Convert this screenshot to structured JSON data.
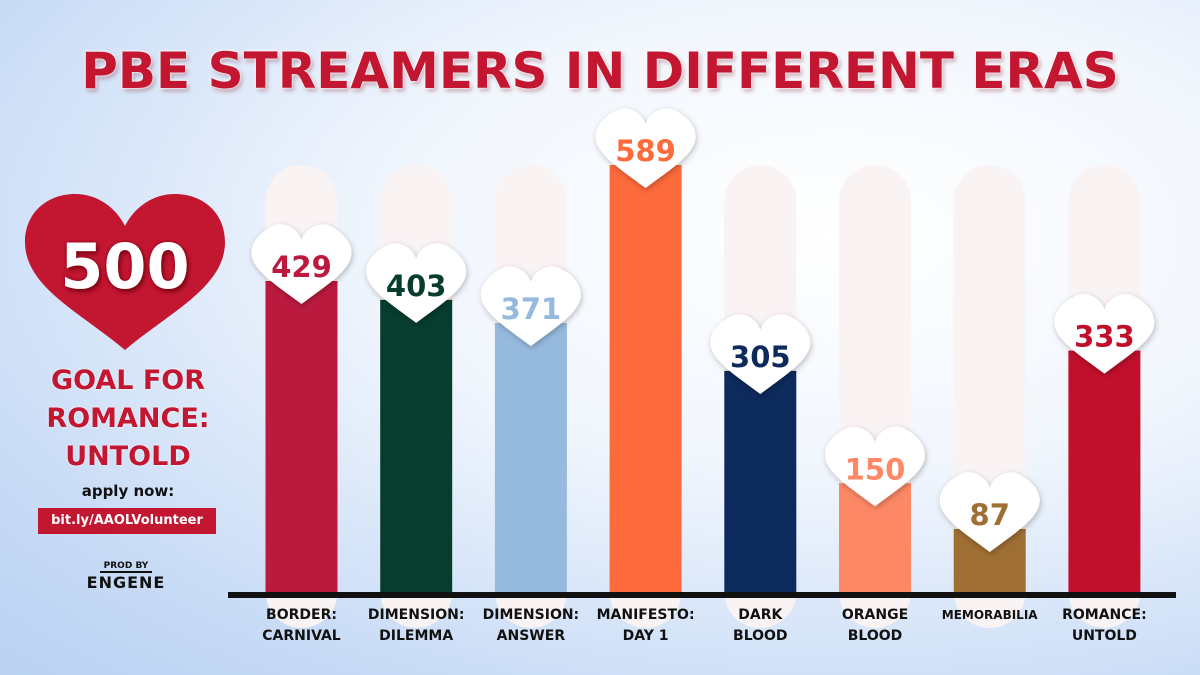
{
  "title": "PBE STREAMERS IN DIFFERENT ERAS",
  "goal": {
    "value": "500",
    "label_lines": [
      "GOAL FOR",
      "ROMANCE:",
      "UNTOLD"
    ],
    "apply_text": "apply now:",
    "link": "bit.ly/AAOLVolunteer"
  },
  "credit": {
    "line1": "PROD BY",
    "line2": "ENGENE"
  },
  "colors": {
    "accent": "#c21631",
    "track": "#f9f3f4"
  },
  "chart_data": {
    "type": "bar",
    "categories": [
      [
        "BORDER:",
        "CARNIVAL"
      ],
      [
        "DIMENSION:",
        "DILEMMA"
      ],
      [
        "DIMENSION:",
        "ANSWER"
      ],
      [
        "MANIFESTO:",
        "DAY 1"
      ],
      [
        "DARK",
        "BLOOD"
      ],
      [
        "ORANGE",
        "BLOOD"
      ],
      [
        "MEMORABILIA"
      ],
      [
        "ROMANCE:",
        "UNTOLD"
      ]
    ],
    "values": [
      429,
      403,
      371,
      589,
      305,
      150,
      87,
      333
    ],
    "data_labels": [
      "429",
      "403",
      "371",
      "589",
      "305",
      "150",
      "87",
      "333"
    ],
    "bar_colors": [
      "#bb1a3e",
      "#063d2e",
      "#96badd",
      "#fd6a3b",
      "#0d2a5c",
      "#fd8866",
      "#9f6e33",
      "#c0102c"
    ],
    "ylim": [
      0,
      589
    ]
  }
}
